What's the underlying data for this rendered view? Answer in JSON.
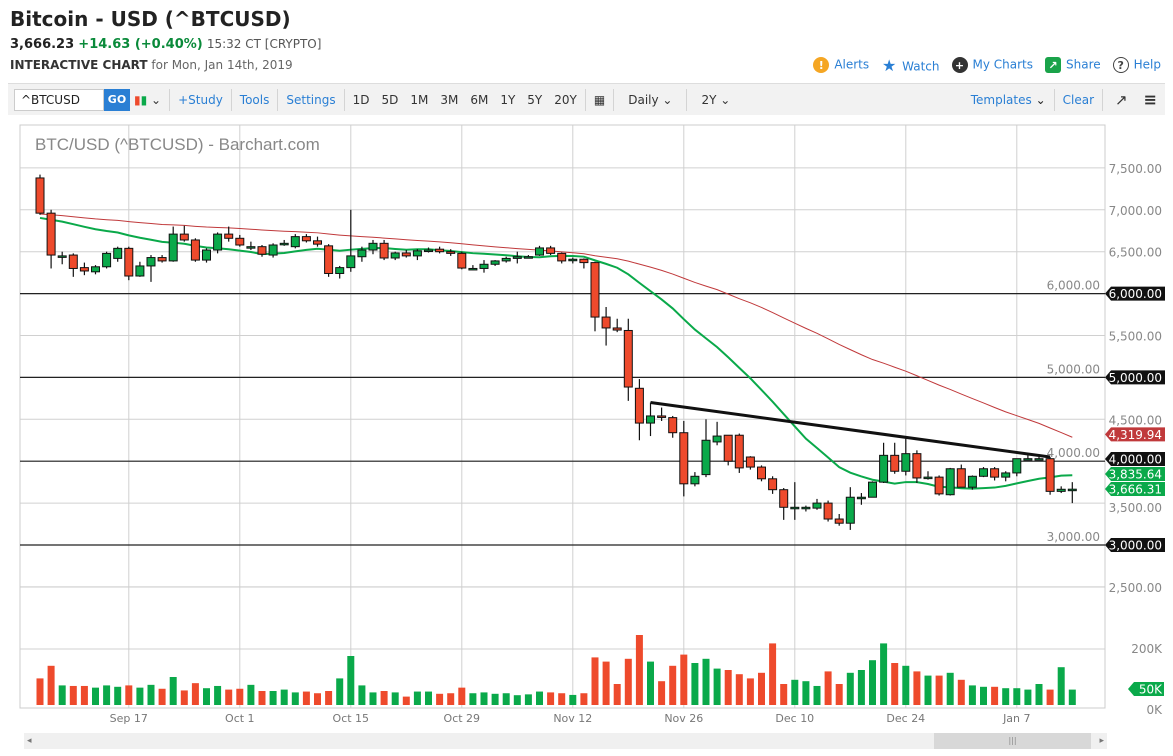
{
  "header": {
    "title": "Bitcoin - USD (^BTCUSD)",
    "last": "3,666.23",
    "change": "+14.63 (+0.40%)",
    "time": "15:32 CT [CRYPTO]",
    "sub_label": "INTERACTIVE CHART",
    "sub_date": "for Mon, Jan 14th, 2019"
  },
  "links": [
    {
      "label": "Alerts",
      "icon": "alert-icon",
      "color": "#f5a623",
      "glyph": "!"
    },
    {
      "label": "Watch",
      "icon": "star-icon",
      "color": "#2a7fd4",
      "glyph": "★"
    },
    {
      "label": "My Charts",
      "icon": "plus-circle-icon",
      "color": "#333333",
      "glyph": "+"
    },
    {
      "label": "Share",
      "icon": "share-icon",
      "color": "#1aa34a",
      "glyph": "↗"
    },
    {
      "label": "Help",
      "icon": "help-icon",
      "color": "#ffffff",
      "glyph": "?"
    }
  ],
  "toolbar": {
    "symbol": "^BTCUSD",
    "go": "GO",
    "study": "+Study",
    "tools": "Tools",
    "settings": "Settings",
    "ranges": [
      "1D",
      "5D",
      "1M",
      "3M",
      "6M",
      "1Y",
      "5Y",
      "20Y"
    ],
    "interval": "Daily",
    "period": "2Y",
    "templates": "Templates",
    "clear": "Clear"
  },
  "chart_data": {
    "type": "candlestick",
    "title": "BTC/USD (^BTCUSD) - Barchart.com",
    "colors": {
      "up": "#0aa94a",
      "down": "#ee4a2c",
      "ma20": "#0aa94a",
      "ma50": "#c0393b"
    },
    "ylim": [
      2500,
      7700
    ],
    "y_ticks": [
      2500,
      3000,
      3500,
      4000,
      4500,
      5000,
      5500,
      6000,
      6500,
      7000,
      7500
    ],
    "y_tick_labels": [
      "2,500.00",
      "3,000.00",
      "3,500.00",
      "4,000.00",
      "4,500.00",
      "5,000.00",
      "5,500.00",
      "6,000.00",
      "6,500.00",
      "7,000.00",
      "7,500.00"
    ],
    "hlines": [
      6000,
      5000,
      4000,
      3000
    ],
    "hline_labels": [
      "6,000.00",
      "5,000.00",
      "4,000.00",
      "3,000.00"
    ],
    "markers": [
      {
        "value": 4319.94,
        "label": "4,319.94",
        "color": "#c0393b"
      },
      {
        "value": 3835.64,
        "label": "3,835.64",
        "color": "#0aa94a"
      },
      {
        "value": 3666.31,
        "label": "3,666.31",
        "color": "#0aa94a"
      }
    ],
    "x_labels": [
      {
        "label": "Sep 17",
        "index": 8
      },
      {
        "label": "Oct 1",
        "index": 18
      },
      {
        "label": "Oct 15",
        "index": 28
      },
      {
        "label": "Oct 29",
        "index": 38
      },
      {
        "label": "Nov 12",
        "index": 48
      },
      {
        "label": "Nov 26",
        "index": 58
      },
      {
        "label": "Dec 10",
        "index": 68
      },
      {
        "label": "Dec 24",
        "index": 78
      },
      {
        "label": "Jan 7",
        "index": 88
      }
    ],
    "trendline": [
      {
        "index": 55,
        "value": 4700
      },
      {
        "index": 91,
        "value": 4050
      }
    ],
    "ohlc": [
      [
        7380,
        7420,
        6940,
        6960
      ],
      [
        6960,
        7000,
        6300,
        6460
      ],
      [
        6450,
        6500,
        6350,
        6450
      ],
      [
        6460,
        6480,
        6200,
        6300
      ],
      [
        6310,
        6370,
        6220,
        6270
      ],
      [
        6260,
        6340,
        6230,
        6320
      ],
      [
        6320,
        6500,
        6300,
        6480
      ],
      [
        6420,
        6560,
        6380,
        6540
      ],
      [
        6540,
        6560,
        6160,
        6210
      ],
      [
        6210,
        6380,
        6200,
        6330
      ],
      [
        6330,
        6460,
        6140,
        6430
      ],
      [
        6430,
        6460,
        6370,
        6390
      ],
      [
        6390,
        6800,
        6380,
        6710
      ],
      [
        6710,
        6810,
        6620,
        6640
      ],
      [
        6640,
        6660,
        6380,
        6400
      ],
      [
        6400,
        6540,
        6370,
        6520
      ],
      [
        6520,
        6730,
        6480,
        6710
      ],
      [
        6710,
        6800,
        6620,
        6660
      ],
      [
        6660,
        6700,
        6560,
        6580
      ],
      [
        6560,
        6620,
        6520,
        6560
      ],
      [
        6560,
        6580,
        6440,
        6470
      ],
      [
        6460,
        6600,
        6430,
        6580
      ],
      [
        6600,
        6640,
        6570,
        6600
      ],
      [
        6560,
        6710,
        6540,
        6680
      ],
      [
        6680,
        6710,
        6610,
        6630
      ],
      [
        6630,
        6680,
        6560,
        6590
      ],
      [
        6570,
        6590,
        6200,
        6240
      ],
      [
        6240,
        6330,
        6180,
        6310
      ],
      [
        6310,
        7000,
        6260,
        6450
      ],
      [
        6440,
        6560,
        6380,
        6520
      ],
      [
        6520,
        6640,
        6470,
        6600
      ],
      [
        6600,
        6640,
        6400,
        6425
      ],
      [
        6425,
        6500,
        6400,
        6485
      ],
      [
        6485,
        6520,
        6430,
        6450
      ],
      [
        6450,
        6530,
        6400,
        6510
      ],
      [
        6520,
        6550,
        6490,
        6520
      ],
      [
        6530,
        6560,
        6480,
        6500
      ],
      [
        6500,
        6530,
        6450,
        6480
      ],
      [
        6480,
        6500,
        6290,
        6305
      ],
      [
        6300,
        6340,
        6280,
        6300
      ],
      [
        6300,
        6400,
        6250,
        6350
      ],
      [
        6350,
        6400,
        6330,
        6390
      ],
      [
        6390,
        6440,
        6370,
        6420
      ],
      [
        6420,
        6500,
        6360,
        6440
      ],
      [
        6440,
        6460,
        6420,
        6440
      ],
      [
        6460,
        6570,
        6450,
        6545
      ],
      [
        6545,
        6570,
        6460,
        6480
      ],
      [
        6480,
        6490,
        6360,
        6390
      ],
      [
        6410,
        6430,
        6360,
        6410
      ],
      [
        6410,
        6420,
        6300,
        6370
      ],
      [
        6370,
        6380,
        5550,
        5720
      ],
      [
        5720,
        5840,
        5380,
        5590
      ],
      [
        5590,
        5700,
        5540,
        5565
      ],
      [
        5560,
        5700,
        4720,
        4885
      ],
      [
        4870,
        4980,
        4250,
        4455
      ],
      [
        4455,
        4700,
        4300,
        4540
      ],
      [
        4540,
        4640,
        4480,
        4530
      ],
      [
        4520,
        4540,
        4280,
        4340
      ],
      [
        4340,
        4480,
        3580,
        3730
      ],
      [
        3730,
        3870,
        3700,
        3820
      ],
      [
        3840,
        4500,
        3810,
        4250
      ],
      [
        4230,
        4470,
        4190,
        4300
      ],
      [
        4310,
        4310,
        3950,
        4000
      ],
      [
        4310,
        4330,
        3860,
        3920
      ],
      [
        4050,
        4060,
        3900,
        3930
      ],
      [
        3930,
        3950,
        3760,
        3790
      ],
      [
        3790,
        3820,
        3610,
        3660
      ],
      [
        3660,
        3680,
        3300,
        3450
      ],
      [
        3450,
        3750,
        3300,
        3450
      ],
      [
        3450,
        3470,
        3400,
        3450
      ],
      [
        3440,
        3550,
        3420,
        3500
      ],
      [
        3500,
        3530,
        3280,
        3310
      ],
      [
        3310,
        3370,
        3230,
        3260
      ],
      [
        3260,
        3690,
        3180,
        3570
      ],
      [
        3570,
        3620,
        3480,
        3570
      ],
      [
        3570,
        3760,
        3570,
        3750
      ],
      [
        3750,
        4220,
        3740,
        4070
      ],
      [
        4070,
        4220,
        3850,
        3880
      ],
      [
        3880,
        4270,
        3830,
        4090
      ],
      [
        4090,
        4130,
        3740,
        3800
      ],
      [
        3810,
        3880,
        3780,
        3810
      ],
      [
        3810,
        3830,
        3590,
        3610
      ],
      [
        3600,
        3920,
        3590,
        3910
      ],
      [
        3910,
        3960,
        3690,
        3690
      ],
      [
        3690,
        3830,
        3660,
        3820
      ],
      [
        3820,
        3930,
        3810,
        3910
      ],
      [
        3910,
        3930,
        3770,
        3810
      ],
      [
        3810,
        3880,
        3760,
        3860
      ],
      [
        3860,
        4030,
        3820,
        4030
      ],
      [
        4030,
        4090,
        4020,
        4030
      ],
      [
        4030,
        4050,
        4020,
        4030
      ],
      [
        4030,
        4050,
        3600,
        3640
      ],
      [
        3640,
        3700,
        3620,
        3665
      ],
      [
        3666,
        3750,
        3500,
        3666
      ]
    ],
    "volume": [
      95,
      140,
      70,
      68,
      68,
      62,
      70,
      65,
      70,
      62,
      72,
      58,
      100,
      52,
      78,
      60,
      68,
      55,
      58,
      72,
      50,
      50,
      55,
      45,
      48,
      42,
      50,
      95,
      175,
      70,
      45,
      50,
      45,
      30,
      48,
      48,
      40,
      42,
      62,
      42,
      45,
      40,
      42,
      35,
      38,
      48,
      45,
      42,
      36,
      42,
      170,
      155,
      75,
      165,
      250,
      155,
      85,
      140,
      180,
      150,
      165,
      130,
      125,
      110,
      95,
      115,
      220,
      75,
      90,
      85,
      68,
      120,
      75,
      115,
      125,
      160,
      220,
      150,
      140,
      120,
      105,
      105,
      115,
      90,
      70,
      65,
      65,
      60,
      60,
      55,
      75,
      55,
      135,
      55
    ],
    "volume_ticks": [
      "200K",
      "0K"
    ],
    "volume_marker": {
      "value": 50,
      "label": "50K",
      "color": "#0aa94a"
    }
  }
}
